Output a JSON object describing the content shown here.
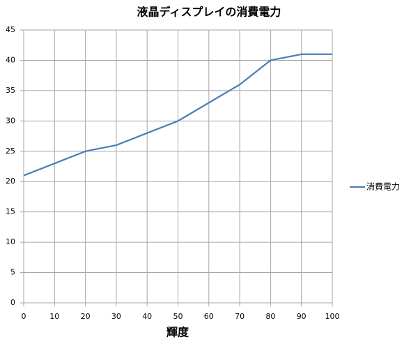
{
  "chart_data": {
    "type": "line",
    "title": "液晶ディスプレイの消費電力",
    "x_label": "輝度",
    "x": [
      0,
      10,
      20,
      30,
      40,
      50,
      60,
      70,
      80,
      90,
      100
    ],
    "series": [
      {
        "name": "消費電力",
        "color": "#4a7ebb",
        "values": [
          21,
          23,
          25,
          26,
          28,
          30,
          33,
          36,
          40,
          41,
          41
        ]
      }
    ],
    "xlim": [
      0,
      100
    ],
    "xticks": [
      0,
      10,
      20,
      30,
      40,
      50,
      60,
      70,
      80,
      90,
      100
    ],
    "ylim": [
      0,
      45
    ],
    "yticks": [
      0,
      5,
      10,
      15,
      20,
      25,
      30,
      35,
      40,
      45
    ],
    "grid": true,
    "legend": "right"
  }
}
